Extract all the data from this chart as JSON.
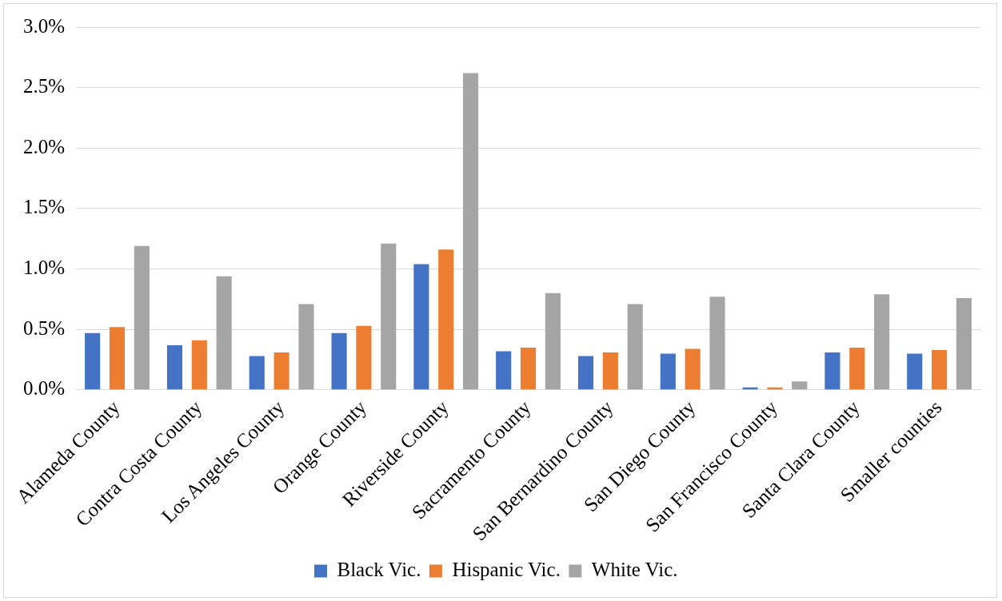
{
  "chart_data": {
    "type": "bar",
    "categories": [
      "Alameda County",
      "Contra Costa County",
      "Los Angeles County",
      "Orange County",
      "Riverside County",
      "Sacramento County",
      "San Bernardino County",
      "San Diego County",
      "San Francisco County",
      "Santa Clara County",
      "Smaller counties"
    ],
    "series": [
      {
        "name": "Black Vic.",
        "color": "#4472c4",
        "values": [
          0.47,
          0.37,
          0.28,
          0.47,
          1.04,
          0.32,
          0.28,
          0.3,
          0.02,
          0.31,
          0.3
        ]
      },
      {
        "name": "Hispanic Vic.",
        "color": "#ed7d31",
        "values": [
          0.52,
          0.41,
          0.31,
          0.53,
          1.16,
          0.35,
          0.31,
          0.34,
          0.02,
          0.35,
          0.33
        ]
      },
      {
        "name": "White Vic.",
        "color": "#a5a5a5",
        "values": [
          1.19,
          0.94,
          0.71,
          1.21,
          2.62,
          0.8,
          0.71,
          0.77,
          0.07,
          0.79,
          0.76
        ]
      }
    ],
    "ylim": [
      0,
      3
    ],
    "yticks": [
      {
        "value": 0,
        "label": "0.0%"
      },
      {
        "value": 0.5,
        "label": "0.5%"
      },
      {
        "value": 1,
        "label": "1.0%"
      },
      {
        "value": 1.5,
        "label": "1.5%"
      },
      {
        "value": 2,
        "label": "2.0%"
      },
      {
        "value": 2.5,
        "label": "2.5%"
      },
      {
        "value": 3,
        "label": "3.0%"
      }
    ],
    "grid": "y",
    "legend": "bottom"
  }
}
